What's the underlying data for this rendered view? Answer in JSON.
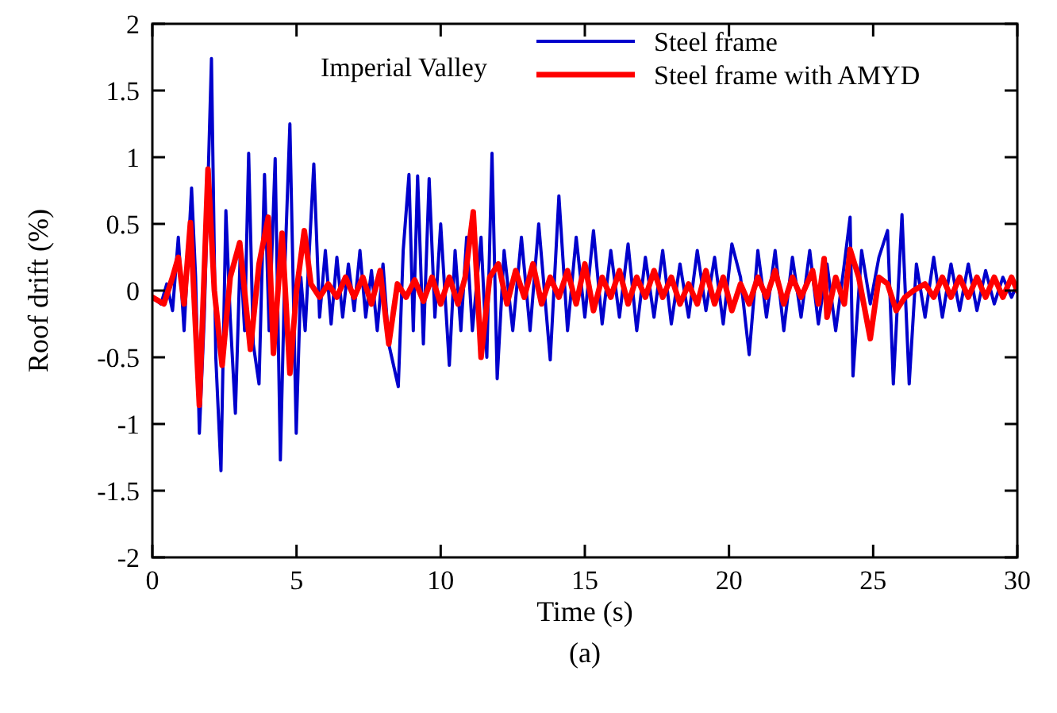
{
  "chart_data": {
    "type": "line",
    "xlabel": "Time (s)",
    "ylabel": "Roof drift (%)",
    "annotations": [
      "Imperial Valley",
      "(a)"
    ],
    "xlim": [
      0,
      30
    ],
    "xticks": [
      0,
      5,
      10,
      15,
      20,
      25,
      30
    ],
    "ylim": [
      -2,
      2
    ],
    "yticks": [
      -2,
      -1.5,
      -1,
      -0.5,
      0,
      0.5,
      1,
      1.5,
      2
    ],
    "legend": "top right",
    "grid": false,
    "line_style": "solid",
    "marker": "none",
    "series": [
      {
        "name": "Steel frame",
        "color": "#0000cc",
        "x": [
          0,
          0.3,
          0.5,
          0.7,
          0.9,
          1.1,
          1.36,
          1.5,
          1.63,
          1.8,
          2.05,
          2.2,
          2.38,
          2.55,
          2.7,
          2.88,
          3.05,
          3.2,
          3.34,
          3.5,
          3.7,
          3.89,
          4.05,
          4.26,
          4.44,
          4.6,
          4.77,
          4.99,
          5.15,
          5.3,
          5.6,
          5.8,
          6.0,
          6.2,
          6.4,
          6.6,
          6.8,
          7.0,
          7.2,
          7.4,
          7.6,
          7.8,
          8.0,
          8.2,
          8.53,
          8.7,
          8.9,
          9.05,
          9.2,
          9.4,
          9.6,
          9.8,
          10.0,
          10.3,
          10.5,
          10.7,
          10.9,
          11.1,
          11.4,
          11.6,
          11.78,
          11.96,
          12.2,
          12.5,
          12.8,
          13.1,
          13.4,
          13.8,
          14.1,
          14.4,
          14.7,
          15.0,
          15.3,
          15.6,
          15.9,
          16.2,
          16.5,
          16.8,
          17.1,
          17.4,
          17.7,
          18.0,
          18.3,
          18.6,
          18.9,
          19.2,
          19.5,
          19.8,
          20.1,
          20.4,
          20.7,
          21.0,
          21.3,
          21.6,
          21.9,
          22.2,
          22.5,
          22.8,
          23.1,
          23.4,
          23.7,
          24.0,
          24.2,
          24.3,
          24.6,
          24.9,
          25.2,
          25.5,
          25.7,
          26.0,
          26.25,
          26.5,
          26.8,
          27.1,
          27.4,
          27.7,
          28.0,
          28.3,
          28.6,
          28.9,
          29.2,
          29.5,
          29.8,
          30
        ],
        "values": [
          -0.05,
          -0.1,
          0.05,
          -0.15,
          0.4,
          -0.3,
          0.77,
          0.1,
          -1.07,
          -0.2,
          1.74,
          -0.5,
          -1.35,
          0.6,
          -0.2,
          -0.92,
          0.3,
          -0.3,
          1.03,
          -0.4,
          -0.7,
          0.87,
          -0.3,
          0.99,
          -1.27,
          0.2,
          1.25,
          -1.07,
          0.1,
          -0.3,
          0.95,
          -0.2,
          0.3,
          -0.25,
          0.25,
          -0.2,
          0.2,
          -0.15,
          0.3,
          -0.2,
          0.15,
          -0.3,
          0.2,
          -0.4,
          -0.72,
          0.3,
          0.87,
          -0.3,
          0.86,
          -0.4,
          0.84,
          -0.2,
          0.5,
          -0.56,
          0.3,
          -0.3,
          0.4,
          -0.3,
          0.4,
          -0.5,
          1.03,
          -0.66,
          0.3,
          -0.3,
          0.4,
          -0.3,
          0.5,
          -0.52,
          0.71,
          -0.3,
          0.4,
          -0.2,
          0.45,
          -0.25,
          0.3,
          -0.2,
          0.35,
          -0.3,
          0.25,
          -0.2,
          0.3,
          -0.25,
          0.2,
          -0.2,
          0.3,
          -0.15,
          0.25,
          -0.25,
          0.35,
          0.1,
          -0.48,
          0.3,
          -0.2,
          0.3,
          -0.3,
          0.25,
          -0.2,
          0.3,
          -0.25,
          0.2,
          -0.3,
          0.2,
          0.55,
          -0.64,
          0.3,
          -0.1,
          0.25,
          0.45,
          -0.7,
          0.57,
          -0.7,
          0.2,
          -0.2,
          0.25,
          -0.2,
          0.2,
          -0.15,
          0.2,
          -0.15,
          0.15,
          -0.1,
          0.1,
          -0.05,
          0.05
        ]
      },
      {
        "name": "Steel frame with AMYD",
        "color": "#ff0000",
        "x": [
          0,
          0.4,
          0.7,
          0.9,
          1.1,
          1.32,
          1.63,
          1.93,
          2.15,
          2.42,
          2.7,
          3.03,
          3.4,
          3.7,
          4.02,
          4.2,
          4.5,
          4.77,
          5.0,
          5.27,
          5.5,
          5.8,
          6.1,
          6.4,
          6.7,
          7.0,
          7.3,
          7.6,
          7.9,
          8.2,
          8.5,
          8.8,
          9.1,
          9.4,
          9.7,
          10.0,
          10.3,
          10.6,
          10.85,
          11.13,
          11.4,
          11.7,
          12.0,
          12.3,
          12.6,
          12.9,
          13.2,
          13.5,
          13.8,
          14.1,
          14.4,
          14.7,
          15.0,
          15.3,
          15.6,
          15.9,
          16.2,
          16.5,
          16.8,
          17.1,
          17.4,
          17.7,
          18.0,
          18.3,
          18.6,
          18.9,
          19.2,
          19.5,
          19.8,
          20.1,
          20.4,
          20.7,
          21.0,
          21.3,
          21.6,
          21.9,
          22.2,
          22.5,
          22.9,
          23.1,
          23.3,
          23.4,
          23.7,
          24.0,
          24.2,
          24.5,
          24.9,
          25.2,
          25.5,
          25.8,
          26.1,
          26.4,
          26.8,
          27.1,
          27.4,
          27.7,
          28.0,
          28.3,
          28.6,
          28.9,
          29.2,
          29.5,
          29.8,
          30
        ],
        "values": [
          -0.05,
          -0.1,
          0.1,
          0.25,
          -0.1,
          0.51,
          -0.86,
          0.91,
          0,
          -0.56,
          0.1,
          0.36,
          -0.44,
          0.2,
          0.55,
          -0.47,
          0.43,
          -0.62,
          0,
          0.45,
          0.05,
          -0.05,
          0.05,
          -0.05,
          0.1,
          -0.05,
          0.1,
          -0.1,
          0.15,
          -0.4,
          0.05,
          -0.05,
          0.08,
          -0.08,
          0.1,
          -0.1,
          0.1,
          -0.1,
          0.1,
          0.59,
          -0.5,
          0.1,
          0.2,
          -0.1,
          0.15,
          -0.05,
          0.2,
          -0.1,
          0.1,
          -0.05,
          0.15,
          -0.1,
          0.2,
          -0.15,
          0.1,
          -0.05,
          0.15,
          -0.1,
          0.1,
          -0.05,
          0.15,
          -0.05,
          0.1,
          -0.1,
          0.05,
          -0.1,
          0.15,
          -0.1,
          0.1,
          -0.15,
          0.05,
          -0.1,
          0.1,
          -0.05,
          0.15,
          -0.1,
          0.1,
          -0.05,
          0.15,
          -0.1,
          0.24,
          -0.2,
          0.1,
          -0.1,
          0.31,
          0.1,
          -0.36,
          0.1,
          0.05,
          -0.15,
          -0.05,
          0,
          0.05,
          -0.05,
          0.1,
          -0.05,
          0.1,
          -0.05,
          0.1,
          -0.05,
          0.1,
          -0.05,
          0.1,
          0
        ]
      }
    ]
  }
}
